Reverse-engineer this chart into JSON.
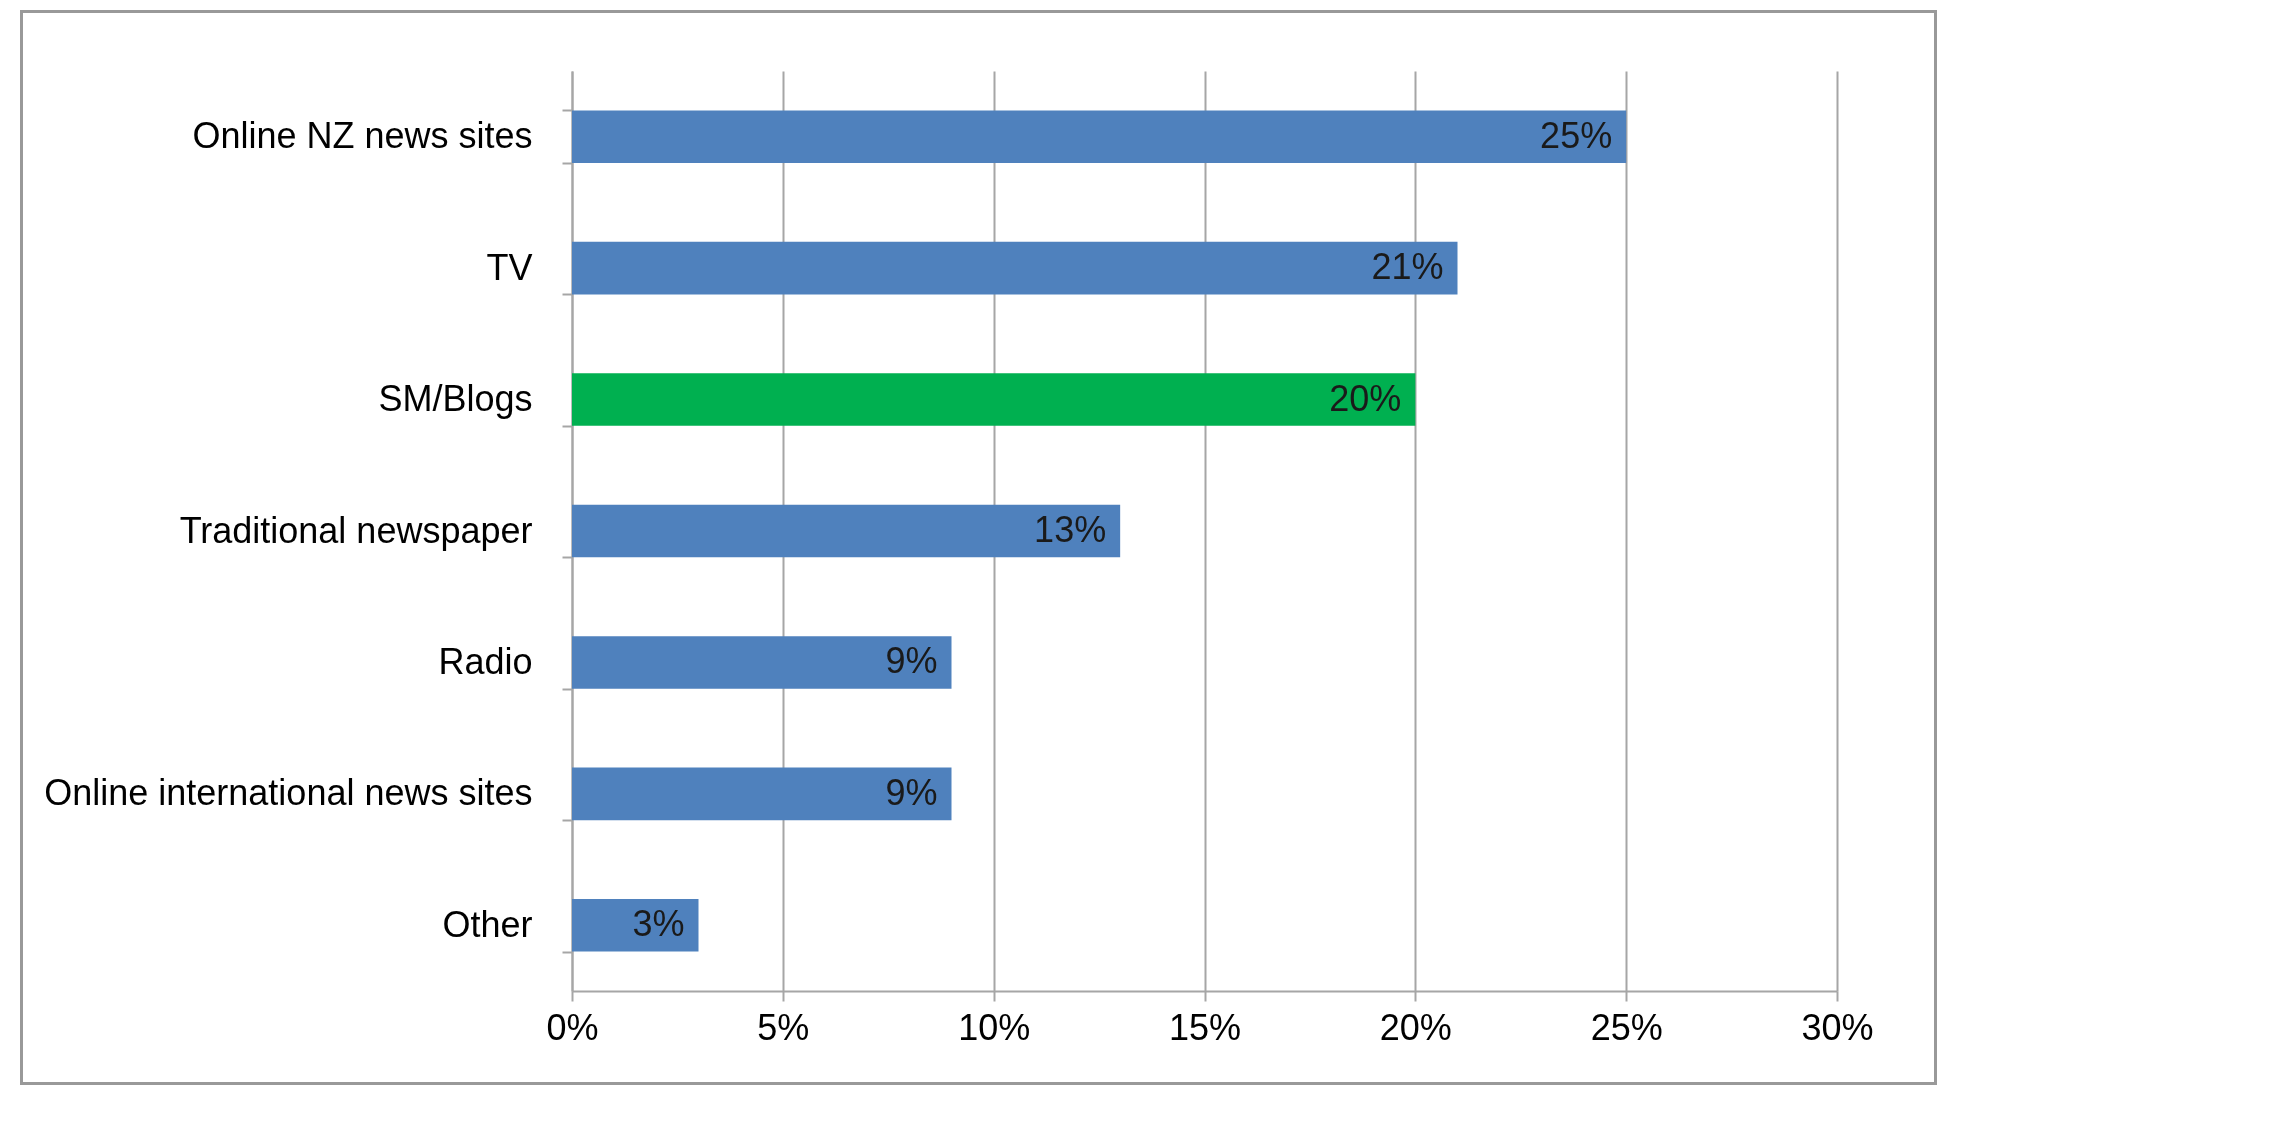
{
  "chart_data": {
    "type": "bar",
    "orientation": "horizontal",
    "categories": [
      "Online NZ news sites",
      "TV",
      "SM/Blogs",
      "Traditional newspaper",
      "Radio",
      "Online international news sites",
      "Other"
    ],
    "values": [
      25,
      21,
      20,
      13,
      9,
      9,
      3
    ],
    "colors": [
      "#4f81bd",
      "#4f81bd",
      "#00b050",
      "#4f81bd",
      "#4f81bd",
      "#4f81bd",
      "#4f81bd"
    ],
    "value_labels": [
      "25%",
      "21%",
      "20%",
      "13%",
      "9%",
      "9%",
      "3%"
    ],
    "xlim": [
      0,
      30
    ],
    "xticks": [
      {
        "value": 0,
        "label": "0%"
      },
      {
        "value": 5,
        "label": "5%"
      },
      {
        "value": 10,
        "label": "10%"
      },
      {
        "value": 15,
        "label": "15%"
      },
      {
        "value": 20,
        "label": "20%"
      },
      {
        "value": 25,
        "label": "25%"
      },
      {
        "value": 30,
        "label": "30%"
      }
    ],
    "grid": "x"
  }
}
